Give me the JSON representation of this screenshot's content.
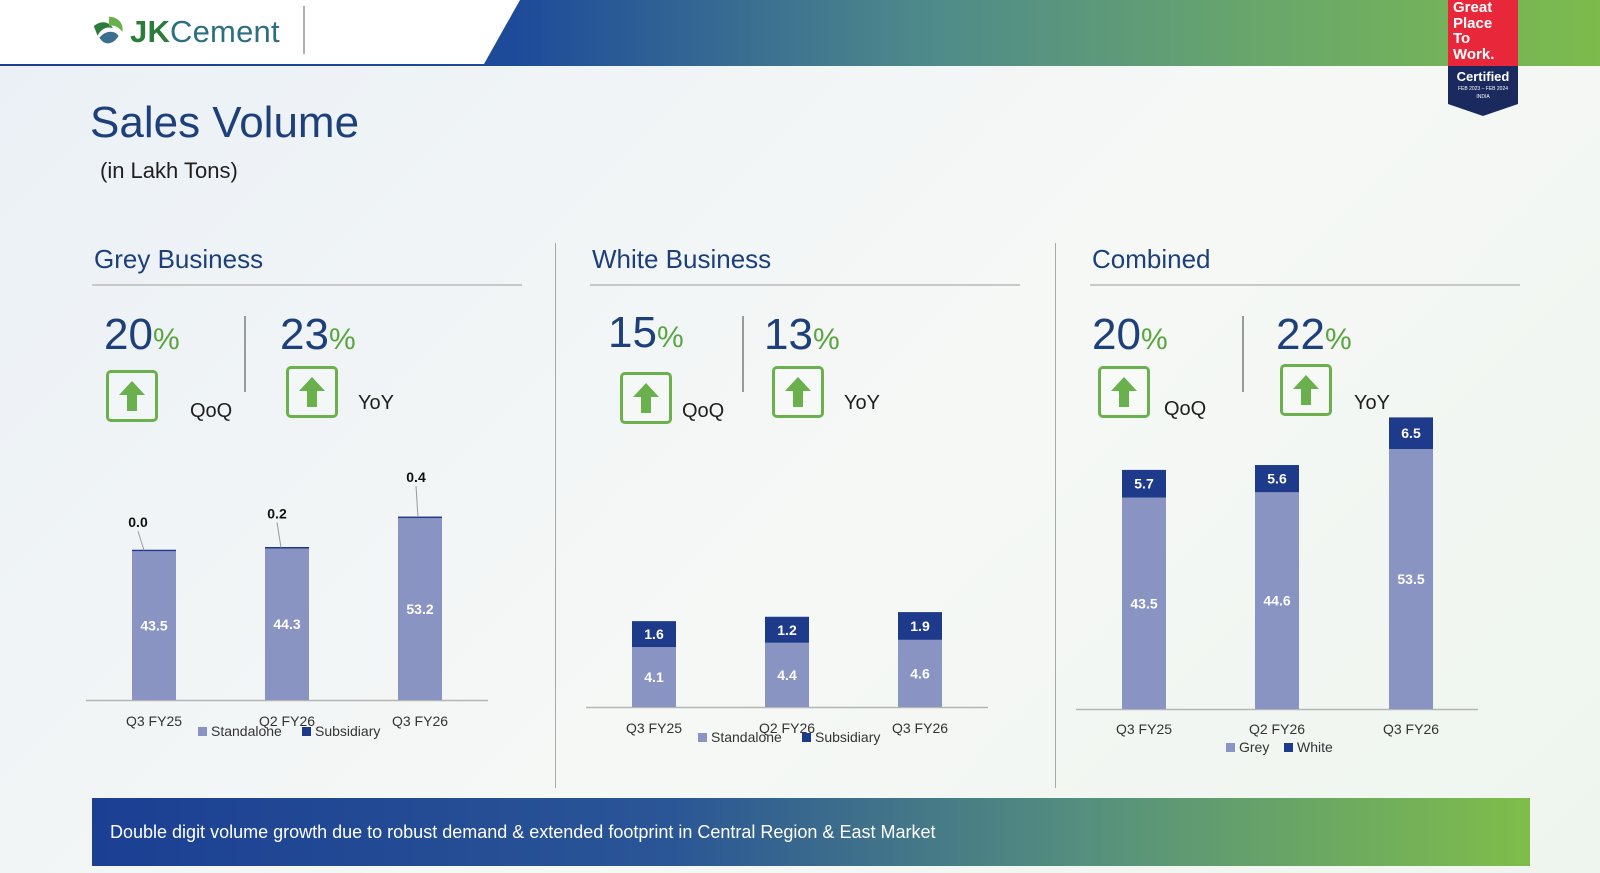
{
  "header": {
    "logo_jk": "JK",
    "logo_cement": "Cement",
    "badge_lines": [
      "Great",
      "Place",
      "To",
      "Work."
    ],
    "badge_certified": "Certified",
    "badge_date": "FEB 2023 – FEB 2024",
    "badge_country": "INDIA"
  },
  "page": {
    "title": "Sales Volume",
    "subtitle": "(in Lakh Tons)",
    "footer": "Double digit volume growth due to robust demand & extended footprint in Central Region & East Market"
  },
  "colors": {
    "lower_series": "#8a94c2",
    "upper_series": "#1e3a8a",
    "arrow_green": "#6ab04c"
  },
  "sections": [
    {
      "title": "Grey Business",
      "qoq": "20",
      "yoy": "23",
      "pct": "%",
      "qoq_label": "QoQ",
      "yoy_label": "YoY",
      "arrow_icon": "up-arrow-icon"
    },
    {
      "title": "White Business",
      "qoq": "15",
      "yoy": "13",
      "pct": "%",
      "qoq_label": "QoQ",
      "yoy_label": "YoY",
      "arrow_icon": "up-arrow-icon"
    },
    {
      "title": "Combined",
      "qoq": "20",
      "yoy": "22",
      "pct": "%",
      "qoq_label": "QoQ",
      "yoy_label": "YoY",
      "arrow_icon": "up-arrow-icon"
    }
  ],
  "chart_data": [
    {
      "type": "bar",
      "stacked": true,
      "categories": [
        "Q3 FY25",
        "Q2 FY26",
        "Q3 FY26"
      ],
      "series": [
        {
          "name": "Standalone",
          "values": [
            43.5,
            44.3,
            53.2
          ]
        },
        {
          "name": "Subsidiary",
          "values": [
            0.0,
            0.2,
            0.4
          ]
        }
      ],
      "labels": [
        [
          "43.5",
          "44.3",
          "53.2"
        ],
        [
          "0.0",
          "0.2",
          "0.4"
        ]
      ],
      "legend": "bottom"
    },
    {
      "type": "bar",
      "stacked": true,
      "categories": [
        "Q3 FY25",
        "Q2 FY26",
        "Q3 FY26"
      ],
      "series": [
        {
          "name": "Standalone",
          "values": [
            4.1,
            4.4,
            4.6
          ]
        },
        {
          "name": "Subsidiary",
          "values": [
            1.6,
            1.2,
            1.9
          ]
        }
      ],
      "labels": [
        [
          "4.1",
          "4.4",
          "4.6"
        ],
        [
          "1.6",
          "1.2",
          "1.9"
        ]
      ],
      "legend": "bottom"
    },
    {
      "type": "bar",
      "stacked": true,
      "categories": [
        "Q3 FY25",
        "Q2 FY26",
        "Q3 FY26"
      ],
      "series": [
        {
          "name": "Grey",
          "values": [
            43.5,
            44.6,
            53.5
          ]
        },
        {
          "name": "White",
          "values": [
            5.7,
            5.6,
            6.5
          ]
        }
      ],
      "labels": [
        [
          "43.5",
          "44.6",
          "53.5"
        ],
        [
          "5.7",
          "5.6",
          "6.5"
        ]
      ],
      "legend": "bottom"
    }
  ]
}
